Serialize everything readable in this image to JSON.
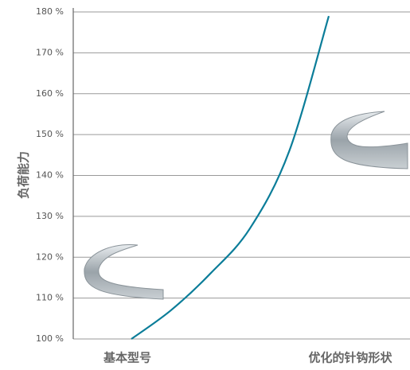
{
  "chart_data": {
    "type": "line",
    "y_label": "负荷能力",
    "categories": [
      "基本型号",
      null,
      null,
      null,
      null,
      "优化的针钩形状"
    ],
    "series": [
      {
        "color": "#0b7d99",
        "values": [
          100,
          107,
          116,
          127,
          146,
          179
        ]
      }
    ],
    "ylim": [
      100,
      180
    ],
    "yticks": [
      {
        "value": 100,
        "label": "100 %"
      },
      {
        "value": 110,
        "label": "110 %"
      },
      {
        "value": 120,
        "label": "120 %"
      },
      {
        "value": 130,
        "label": "130 %"
      },
      {
        "value": 140,
        "label": "140 %"
      },
      {
        "value": 150,
        "label": "150 %"
      },
      {
        "value": 160,
        "label": "160 %"
      },
      {
        "value": 170,
        "label": "170 %"
      },
      {
        "value": 180,
        "label": "180 %"
      }
    ],
    "grid": true
  }
}
